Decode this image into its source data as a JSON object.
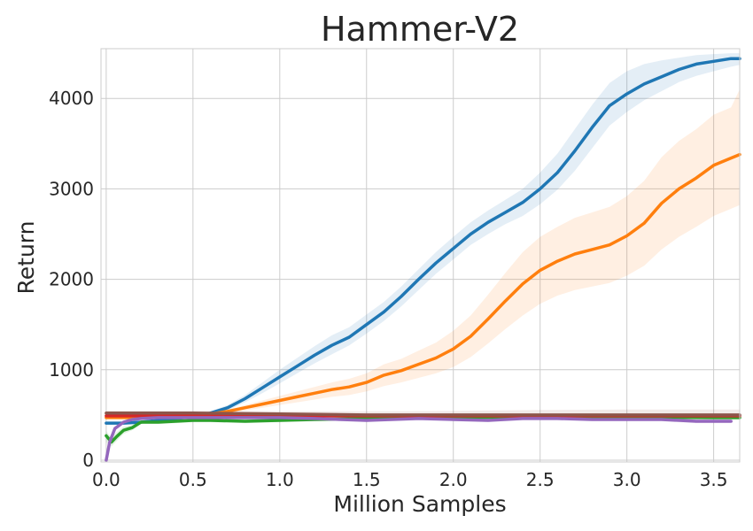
{
  "chart_data": {
    "type": "line",
    "title": "Hammer-V2",
    "xlabel": "Million Samples",
    "ylabel": "Return",
    "xlim": [
      -0.03,
      3.65
    ],
    "ylim": [
      -20,
      4550
    ],
    "xticks": [
      0.0,
      0.5,
      1.0,
      1.5,
      2.0,
      2.5,
      3.0,
      3.5
    ],
    "xtick_labels": [
      "0.0",
      "0.5",
      "1.0",
      "1.5",
      "2.0",
      "2.5",
      "3.0",
      "3.5"
    ],
    "yticks": [
      0,
      1000,
      2000,
      3000,
      4000
    ],
    "ytick_labels": [
      "0",
      "1000",
      "2000",
      "3000",
      "4000"
    ],
    "grid": true,
    "legend": "none",
    "series": [
      {
        "color": "#1f77b4",
        "x": [
          0.0,
          0.1,
          0.2,
          0.3,
          0.4,
          0.5,
          0.6,
          0.7,
          0.8,
          0.9,
          1.0,
          1.1,
          1.2,
          1.3,
          1.4,
          1.5,
          1.6,
          1.7,
          1.8,
          1.9,
          2.0,
          2.1,
          2.2,
          2.3,
          2.4,
          2.5,
          2.6,
          2.7,
          2.8,
          2.9,
          3.0,
          3.1,
          3.2,
          3.3,
          3.4,
          3.5,
          3.6,
          3.65
        ],
        "y": [
          410,
          410,
          420,
          440,
          460,
          480,
          520,
          580,
          680,
          800,
          920,
          1040,
          1160,
          1270,
          1360,
          1500,
          1640,
          1810,
          2000,
          2180,
          2340,
          2500,
          2630,
          2740,
          2850,
          3000,
          3180,
          3420,
          3680,
          3920,
          4050,
          4160,
          4240,
          4320,
          4380,
          4410,
          4440,
          4440
        ],
        "lower": [
          410,
          410,
          420,
          430,
          450,
          470,
          500,
          550,
          640,
          740,
          850,
          960,
          1070,
          1170,
          1270,
          1400,
          1540,
          1700,
          1880,
          2060,
          2220,
          2380,
          2500,
          2610,
          2700,
          2830,
          2990,
          3200,
          3450,
          3700,
          3850,
          3980,
          4080,
          4180,
          4250,
          4300,
          4350,
          4370
        ],
        "upper": [
          420,
          420,
          430,
          450,
          470,
          500,
          540,
          610,
          720,
          860,
          1000,
          1130,
          1260,
          1380,
          1470,
          1610,
          1750,
          1920,
          2110,
          2300,
          2470,
          2630,
          2760,
          2880,
          3000,
          3180,
          3390,
          3660,
          3930,
          4170,
          4300,
          4380,
          4420,
          4450,
          4480,
          4490,
          4500,
          4500
        ]
      },
      {
        "color": "#ff7f0e",
        "x": [
          0.0,
          0.1,
          0.2,
          0.3,
          0.4,
          0.5,
          0.6,
          0.7,
          0.8,
          0.9,
          1.0,
          1.1,
          1.2,
          1.3,
          1.4,
          1.5,
          1.6,
          1.7,
          1.8,
          1.9,
          2.0,
          2.1,
          2.2,
          2.3,
          2.4,
          2.5,
          2.6,
          2.7,
          2.8,
          2.9,
          3.0,
          3.1,
          3.2,
          3.3,
          3.4,
          3.5,
          3.6,
          3.65
        ],
        "y": [
          470,
          470,
          470,
          480,
          490,
          500,
          510,
          540,
          580,
          620,
          660,
          700,
          740,
          780,
          810,
          860,
          940,
          990,
          1060,
          1130,
          1230,
          1370,
          1560,
          1760,
          1950,
          2100,
          2200,
          2280,
          2330,
          2380,
          2480,
          2620,
          2840,
          3000,
          3120,
          3260,
          3340,
          3380
        ],
        "lower": [
          460,
          460,
          460,
          470,
          480,
          490,
          500,
          520,
          550,
          580,
          610,
          640,
          670,
          700,
          720,
          760,
          820,
          860,
          910,
          960,
          1030,
          1140,
          1290,
          1450,
          1600,
          1730,
          1820,
          1880,
          1920,
          1960,
          2040,
          2150,
          2330,
          2470,
          2580,
          2700,
          2780,
          2820
        ],
        "upper": [
          480,
          480,
          480,
          490,
          500,
          510,
          520,
          560,
          610,
          660,
          710,
          760,
          810,
          860,
          900,
          960,
          1060,
          1120,
          1210,
          1300,
          1430,
          1600,
          1830,
          2070,
          2300,
          2470,
          2580,
          2680,
          2740,
          2800,
          2920,
          3090,
          3350,
          3530,
          3660,
          3820,
          3900,
          4100
        ]
      },
      {
        "color": "#2ca02c",
        "x": [
          0.0,
          0.03,
          0.06,
          0.1,
          0.15,
          0.2,
          0.3,
          0.4,
          0.5,
          0.6,
          0.8,
          1.0,
          1.2,
          1.5,
          2.0,
          2.5,
          3.0,
          3.5,
          3.65
        ],
        "y": [
          270,
          200,
          260,
          330,
          360,
          420,
          420,
          430,
          440,
          440,
          430,
          440,
          450,
          460,
          470,
          480,
          480,
          470,
          470
        ],
        "lower": [
          200,
          150,
          210,
          290,
          330,
          400,
          400,
          410,
          420,
          420,
          410,
          420,
          430,
          440,
          450,
          460,
          460,
          450,
          450
        ],
        "upper": [
          320,
          250,
          310,
          370,
          390,
          440,
          440,
          450,
          460,
          460,
          450,
          460,
          470,
          480,
          490,
          500,
          500,
          490,
          490
        ]
      },
      {
        "color": "#d62728",
        "x": [
          0.0,
          0.5,
          1.0,
          1.5,
          2.0,
          2.5,
          3.0,
          3.5,
          3.65
        ],
        "y": [
          490,
          490,
          490,
          490,
          490,
          490,
          490,
          490,
          490
        ],
        "lower": [
          470,
          470,
          470,
          470,
          470,
          470,
          470,
          470,
          470
        ],
        "upper": [
          510,
          510,
          510,
          510,
          510,
          510,
          510,
          510,
          510
        ]
      },
      {
        "color": "#9467bd",
        "x": [
          0.0,
          0.02,
          0.05,
          0.1,
          0.15,
          0.2,
          0.3,
          0.5,
          0.8,
          1.0,
          1.2,
          1.5,
          1.8,
          2.0,
          2.2,
          2.4,
          2.6,
          2.8,
          3.0,
          3.2,
          3.4,
          3.6
        ],
        "y": [
          0,
          200,
          350,
          420,
          450,
          460,
          470,
          470,
          470,
          470,
          460,
          440,
          460,
          450,
          440,
          460,
          460,
          450,
          450,
          450,
          430,
          430
        ],
        "lower": [
          0,
          180,
          330,
          400,
          430,
          440,
          450,
          450,
          450,
          450,
          440,
          420,
          440,
          430,
          420,
          440,
          440,
          430,
          430,
          430,
          410,
          410
        ],
        "upper": [
          0,
          220,
          370,
          440,
          470,
          480,
          490,
          490,
          490,
          490,
          480,
          460,
          480,
          470,
          460,
          480,
          480,
          470,
          470,
          470,
          450,
          450
        ]
      },
      {
        "color": "#8c564b",
        "x": [
          0.0,
          0.5,
          1.0,
          1.5,
          2.0,
          2.5,
          3.0,
          3.5,
          3.65
        ],
        "y": [
          520,
          520,
          510,
          500,
          500,
          500,
          500,
          500,
          500
        ],
        "lower": [
          490,
          490,
          480,
          460,
          450,
          450,
          450,
          450,
          450
        ],
        "upper": [
          545,
          545,
          540,
          540,
          545,
          555,
          560,
          560,
          560
        ]
      }
    ]
  }
}
